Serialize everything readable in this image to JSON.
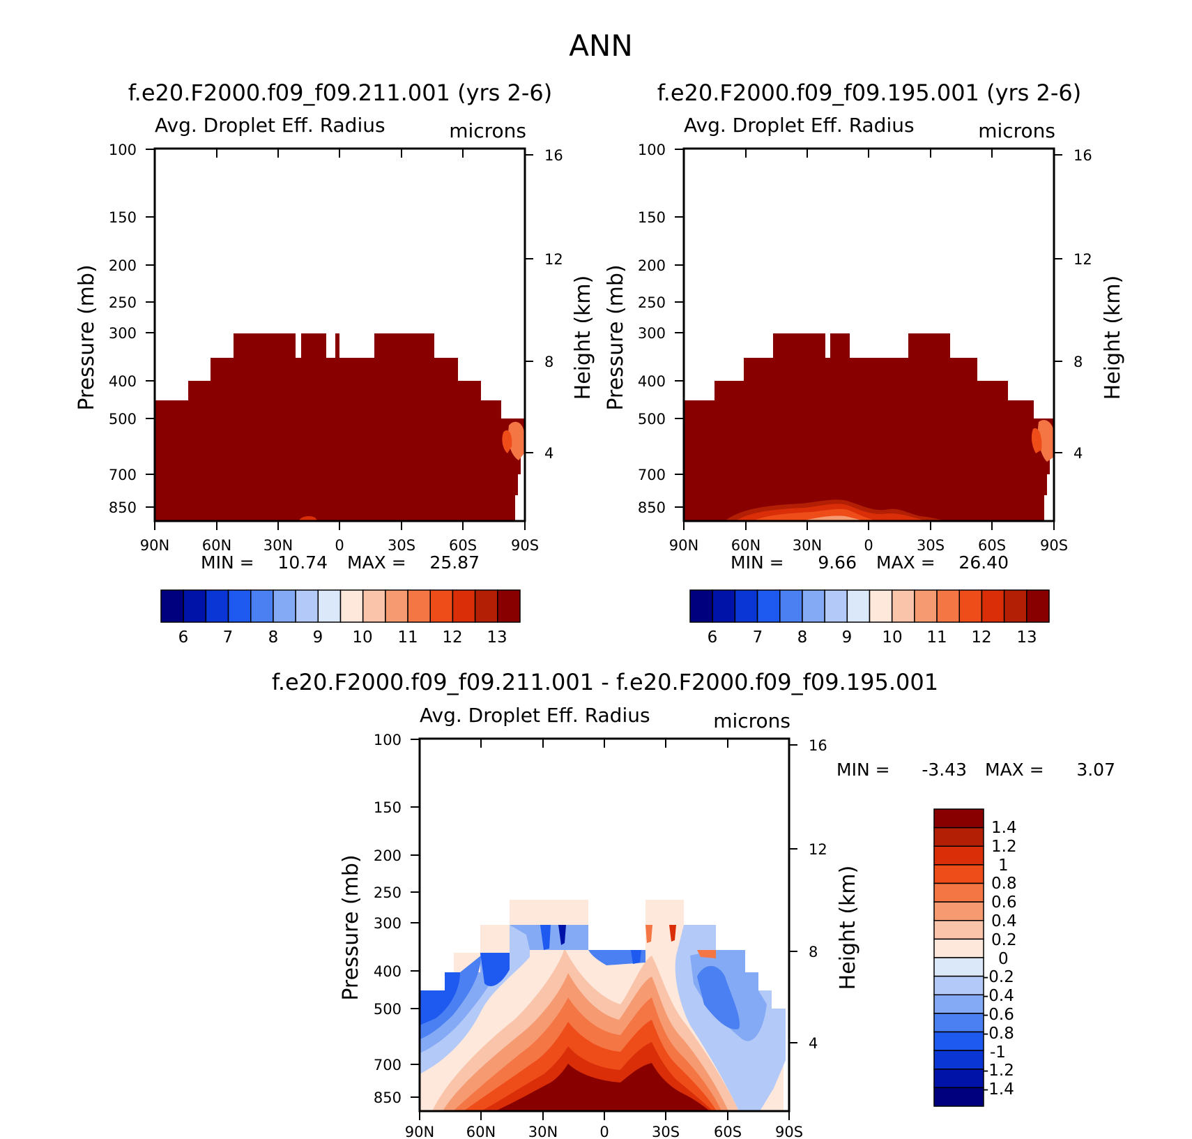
{
  "figure_title": "ANN",
  "colors": {
    "abs_levels": [
      "#00007f",
      "#0013a8",
      "#0a36d6",
      "#1e5af0",
      "#4a80f2",
      "#84a9f5",
      "#b3c9f7",
      "#dbe8fa",
      "#fde8db",
      "#f9c4aa",
      "#f69a72",
      "#f47644",
      "#ee4d1a",
      "#d92e08",
      "#b21f05",
      "#880000"
    ],
    "diff_levels": [
      "#00007f",
      "#0013a8",
      "#0a36d6",
      "#1e5af0",
      "#4a80f2",
      "#84a9f5",
      "#b3c9f7",
      "#dbe8fa",
      "#fde8db",
      "#f9c4aa",
      "#f69a72",
      "#f47644",
      "#ee4d1a",
      "#d92e08",
      "#b21f05",
      "#880000"
    ],
    "fill_max": "#880000"
  },
  "chart_data": [
    {
      "type": "heatmap",
      "title": "f.e20.F2000.f09_f09.211.001 (yrs 2-6)",
      "subtitle": "Avg. Droplet Eff. Radius",
      "units": "microns",
      "ylabel": "Pressure (mb)",
      "ylabel_right": "Height (km)",
      "xlabels": [
        "90N",
        "60N",
        "30N",
        "0",
        "30S",
        "60S",
        "90S"
      ],
      "yticks": [
        "100",
        "150",
        "200",
        "250",
        "300",
        "400",
        "500",
        "700",
        "850"
      ],
      "yticks_right": [
        "16",
        "12",
        "8",
        "4"
      ],
      "min_label": "MIN =",
      "min_value": "10.74",
      "max_label": "MAX =",
      "max_value": "25.87",
      "colorbar_labels": [
        "6",
        "7",
        "8",
        "9",
        "10",
        "11",
        "12",
        "13"
      ],
      "zlim": [
        5.5,
        13.5
      ],
      "cloud_top_profile_mb": [
        {
          "lat_range": [
            "90N",
            "80N"
          ],
          "top": 450
        },
        {
          "lat_range": [
            "80N",
            "70N"
          ],
          "top": 400
        },
        {
          "lat_range": [
            "70N",
            "60N"
          ],
          "top": 350
        },
        {
          "lat_range": [
            "60N",
            "50N"
          ],
          "top": 300
        },
        {
          "lat_range": [
            "20S",
            "45S"
          ],
          "top": 300
        },
        {
          "lat_range": [
            "45S",
            "55S"
          ],
          "top": 350
        },
        {
          "lat_range": [
            "55S",
            "65S"
          ],
          "top": 400
        },
        {
          "lat_range": [
            "65S",
            "75S"
          ],
          "top": 450
        },
        {
          "lat_range": [
            "75S",
            "85S"
          ],
          "top": 500
        }
      ]
    },
    {
      "type": "heatmap",
      "title": "f.e20.F2000.f09_f09.195.001 (yrs 2-6)",
      "subtitle": "Avg. Droplet Eff. Radius",
      "units": "microns",
      "ylabel": "Pressure (mb)",
      "ylabel_right": "Height (km)",
      "xlabels": [
        "90N",
        "60N",
        "30N",
        "0",
        "30S",
        "60S",
        "90S"
      ],
      "yticks": [
        "100",
        "150",
        "200",
        "250",
        "300",
        "400",
        "500",
        "700",
        "850"
      ],
      "yticks_right": [
        "16",
        "12",
        "8",
        "4"
      ],
      "min_label": "MIN =",
      "min_value": "9.66",
      "max_label": "MAX =",
      "max_value": "26.40",
      "colorbar_labels": [
        "6",
        "7",
        "8",
        "9",
        "10",
        "11",
        "12",
        "13"
      ],
      "zlim": [
        5.5,
        13.5
      ]
    },
    {
      "type": "heatmap",
      "title": "f.e20.F2000.f09_f09.211.001 - f.e20.F2000.f09_f09.195.001",
      "subtitle": "Avg. Droplet Eff. Radius",
      "units": "microns",
      "ylabel": "Pressure (mb)",
      "ylabel_right": "Height (km)",
      "xlabels": [
        "90N",
        "60N",
        "30N",
        "0",
        "30S",
        "60S",
        "90S"
      ],
      "yticks": [
        "100",
        "150",
        "200",
        "250",
        "300",
        "400",
        "500",
        "700",
        "850"
      ],
      "yticks_right": [
        "16",
        "12",
        "8",
        "4"
      ],
      "min_label": "MIN =",
      "min_value": "-3.43",
      "max_label": "MAX =",
      "max_value": "3.07",
      "colorbar_labels": [
        "1.4",
        "1.2",
        "1",
        "0.8",
        "0.6",
        "0.4",
        "0.2",
        "0",
        "-0.2",
        "-0.4",
        "-0.6",
        "-0.8",
        "-1",
        "-1.2",
        "-1.4"
      ],
      "zlim": [
        -1.6,
        1.6
      ]
    }
  ]
}
